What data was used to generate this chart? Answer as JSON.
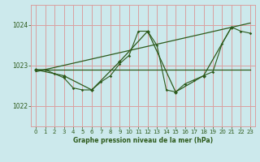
{
  "bg_color": "#cce9ec",
  "grid_color": "#d9a0a0",
  "line_color": "#2d5a1b",
  "title": "Graphe pression niveau de la mer (hPa)",
  "ylim": [
    1021.5,
    1024.5
  ],
  "yticks": [
    1022,
    1023,
    1024
  ],
  "xlim": [
    -0.5,
    23.5
  ],
  "xticks": [
    0,
    1,
    2,
    3,
    4,
    5,
    6,
    7,
    8,
    9,
    10,
    11,
    12,
    13,
    14,
    15,
    16,
    17,
    18,
    19,
    20,
    21,
    22,
    23
  ],
  "series1_x": [
    0,
    1,
    2,
    3,
    4,
    5,
    6,
    7,
    8,
    9,
    10,
    11,
    12,
    13,
    14,
    15,
    16,
    17,
    18,
    19,
    20,
    21,
    22,
    23
  ],
  "series1_y": [
    1022.9,
    1022.9,
    1022.8,
    1022.7,
    1022.45,
    1022.4,
    1022.4,
    1022.6,
    1022.75,
    1023.05,
    1023.25,
    1023.85,
    1023.85,
    1023.5,
    1022.4,
    1022.35,
    1022.55,
    1022.65,
    1022.75,
    1022.85,
    1023.55,
    1023.95,
    1023.85,
    1023.8
  ],
  "series2_x": [
    0,
    3,
    6,
    9,
    12,
    15,
    18,
    21
  ],
  "series2_y": [
    1022.9,
    1022.75,
    1022.4,
    1023.1,
    1023.85,
    1022.35,
    1022.75,
    1023.95
  ],
  "trend1_x": [
    0,
    23
  ],
  "trend1_y": [
    1022.9,
    1022.9
  ],
  "trend2_x": [
    0,
    23
  ],
  "trend2_y": [
    1022.85,
    1024.05
  ],
  "figsize": [
    3.2,
    2.0
  ],
  "dpi": 100
}
